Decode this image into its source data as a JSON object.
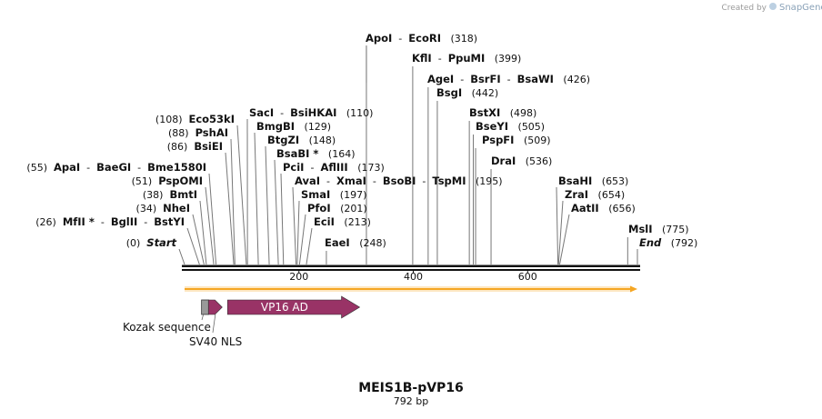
{
  "credit": {
    "prefix": "Created by",
    "brand": "SnapGene"
  },
  "plasmid": {
    "name": "MEIS1B-pVP16",
    "length_label": "792 bp",
    "length": 792
  },
  "axis": {
    "ticks": [
      200,
      400,
      600
    ],
    "tick_labels": [
      "200",
      "400",
      "600"
    ]
  },
  "enzyme_groups": [
    {
      "names": [
        "ApoI",
        "EcoRI"
      ],
      "position": 318,
      "pos_label": "(318)",
      "side": "right"
    },
    {
      "names": [
        "KflI",
        "PpuMI"
      ],
      "position": 399,
      "pos_label": "(399)",
      "side": "right"
    },
    {
      "names": [
        "AgeI",
        "BsrFI",
        "BsaWI"
      ],
      "position": 426,
      "pos_label": "(426)",
      "side": "right"
    },
    {
      "names": [
        "BsgI"
      ],
      "position": 442,
      "pos_label": "(442)",
      "side": "right"
    },
    {
      "names": [
        "BstXI"
      ],
      "position": 498,
      "pos_label": "(498)",
      "side": "right"
    },
    {
      "names": [
        "BseYI"
      ],
      "position": 505,
      "pos_label": "(505)",
      "side": "right"
    },
    {
      "names": [
        "PspFI"
      ],
      "position": 509,
      "pos_label": "(509)",
      "side": "right"
    },
    {
      "names": [
        "DraI"
      ],
      "position": 536,
      "pos_label": "(536)",
      "side": "right"
    },
    {
      "names": [
        "SacI",
        "BsiHKAI"
      ],
      "position": 110,
      "pos_label": "(110)",
      "side": "right"
    },
    {
      "names": [
        "BmgBI"
      ],
      "position": 129,
      "pos_label": "(129)",
      "side": "right"
    },
    {
      "names": [
        "BtgZI"
      ],
      "position": 148,
      "pos_label": "(148)",
      "side": "right"
    },
    {
      "names": [
        "BsaBI *"
      ],
      "position": 164,
      "pos_label": "(164)",
      "side": "right"
    },
    {
      "names": [
        "PciI",
        "AflIII"
      ],
      "position": 173,
      "pos_label": "(173)",
      "side": "right"
    },
    {
      "names": [
        "AvaI",
        "XmaI",
        "BsoBI",
        "TspMI"
      ],
      "position": 195,
      "pos_label": "(195)",
      "side": "right"
    },
    {
      "names": [
        "SmaI"
      ],
      "position": 197,
      "pos_label": "(197)",
      "side": "right"
    },
    {
      "names": [
        "PfoI"
      ],
      "position": 201,
      "pos_label": "(201)",
      "side": "right"
    },
    {
      "names": [
        "EciI"
      ],
      "position": 213,
      "pos_label": "(213)",
      "side": "right"
    },
    {
      "names": [
        "EaeI"
      ],
      "position": 248,
      "pos_label": "(248)",
      "side": "right"
    },
    {
      "names": [
        "Eco53kI"
      ],
      "position": 108,
      "pos_label": "(108)",
      "side": "left"
    },
    {
      "names": [
        "PshAI"
      ],
      "position": 88,
      "pos_label": "(88)",
      "side": "left"
    },
    {
      "names": [
        "BsiEI"
      ],
      "position": 86,
      "pos_label": "(86)",
      "side": "left"
    },
    {
      "names": [
        "ApaI",
        "BaeGI",
        "Bme1580I"
      ],
      "position": 55,
      "pos_label": "(55)",
      "side": "left"
    },
    {
      "names": [
        "PspOMI"
      ],
      "position": 51,
      "pos_label": "(51)",
      "side": "left"
    },
    {
      "names": [
        "BmtI"
      ],
      "position": 38,
      "pos_label": "(38)",
      "side": "left"
    },
    {
      "names": [
        "NheI"
      ],
      "position": 34,
      "pos_label": "(34)",
      "side": "left"
    },
    {
      "names": [
        "MfII *",
        "BglII",
        "BstYI"
      ],
      "position": 26,
      "pos_label": "(26)",
      "side": "left"
    },
    {
      "names": [
        "Start"
      ],
      "position": 0,
      "pos_label": "(0)",
      "side": "left",
      "italic": true
    },
    {
      "names": [
        "BsaHI"
      ],
      "position": 653,
      "pos_label": "(653)",
      "side": "right"
    },
    {
      "names": [
        "ZraI"
      ],
      "position": 654,
      "pos_label": "(654)",
      "side": "right"
    },
    {
      "names": [
        "AatII"
      ],
      "position": 656,
      "pos_label": "(656)",
      "side": "right"
    },
    {
      "names": [
        "MslI"
      ],
      "position": 775,
      "pos_label": "(775)",
      "side": "right"
    },
    {
      "names": [
        "End"
      ],
      "position": 792,
      "pos_label": "(792)",
      "side": "right",
      "italic": true
    }
  ],
  "orf": {
    "start": 0,
    "end": 792,
    "direction": "forward",
    "color": "#f5a623"
  },
  "features": [
    {
      "name": "Kozak sequence",
      "start": 36,
      "end": 45,
      "color": "#999999",
      "shape": "box"
    },
    {
      "name": "SV40 NLS",
      "start": 45,
      "end": 69,
      "color": "#993366",
      "shape": "arrow"
    },
    {
      "name": "VP16 AD",
      "start": 72,
      "end": 303,
      "color": "#993366",
      "shape": "arrow"
    }
  ]
}
